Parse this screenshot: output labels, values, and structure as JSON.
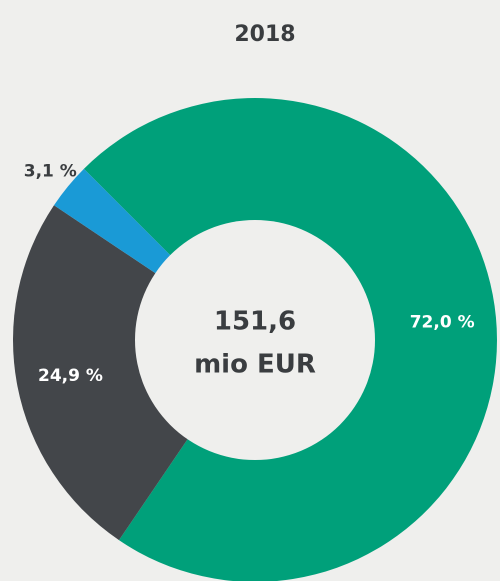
{
  "chart_data": {
    "type": "pie",
    "title": "2018",
    "values": [
      72.0,
      24.9,
      3.1
    ],
    "value_labels": [
      "72,0 %",
      "24,9 %",
      "3,1 %"
    ],
    "colors": [
      "#00a07a",
      "#43464a",
      "#1a9ad6"
    ],
    "center_text": [
      "151,6",
      "mio EUR"
    ]
  }
}
